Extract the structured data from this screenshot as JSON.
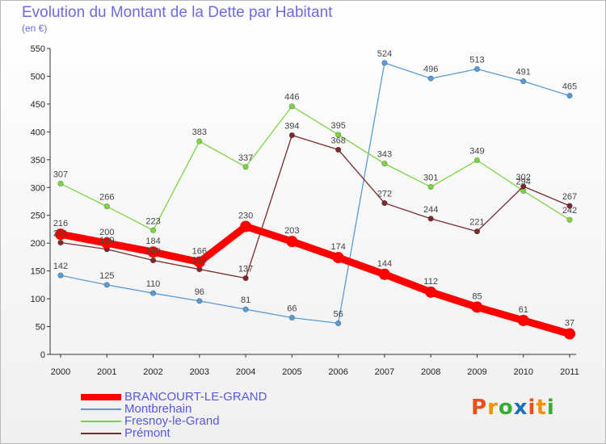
{
  "title": "Evolution du Montant de la Dette par Habitant",
  "subtitle": "(en €)",
  "logo": {
    "letters": [
      "P",
      "r",
      "o",
      "x",
      "i",
      "t",
      "i"
    ],
    "colors": [
      "#e94e1b",
      "#f39200",
      "#3aaa35",
      "#1d71b8",
      "#e94e1b",
      "#f39200",
      "#3aaa35"
    ]
  },
  "chart_data": {
    "type": "line",
    "title": "Evolution du Montant de la Dette par Habitant",
    "subtitle": "(en €)",
    "x": [
      "2000",
      "2001",
      "2002",
      "2003",
      "2004",
      "2005",
      "2006",
      "2007",
      "2008",
      "2009",
      "2010",
      "2011"
    ],
    "ylim": [
      0,
      550
    ],
    "yticks": [
      "0",
      "50",
      "100",
      "150",
      "200",
      "250",
      "300",
      "350",
      "400",
      "450",
      "500",
      "550"
    ],
    "grid": false,
    "legend_position": "bottom-left",
    "series": [
      {
        "name": "BRANCOURT-LE-GRAND",
        "color": "#ff0000",
        "thick": true,
        "values": [
          216,
          200,
          184,
          166,
          230,
          203,
          174,
          144,
          112,
          85,
          61,
          37
        ]
      },
      {
        "name": "Montbrehain",
        "color": "#5a9bd5",
        "thick": false,
        "values": [
          142,
          125,
          110,
          96,
          81,
          66,
          56,
          524,
          496,
          513,
          491,
          465
        ]
      },
      {
        "name": "Fresnoy-le-Grand",
        "color": "#7ed345",
        "thick": false,
        "values": [
          307,
          266,
          223,
          383,
          337,
          446,
          395,
          343,
          301,
          349,
          294,
          242
        ]
      },
      {
        "name": "Prémont",
        "color": "#7a2a2a",
        "thick": false,
        "values": [
          201,
          189,
          169,
          153,
          137,
          394,
          368,
          272,
          244,
          221,
          302,
          267
        ]
      }
    ]
  }
}
